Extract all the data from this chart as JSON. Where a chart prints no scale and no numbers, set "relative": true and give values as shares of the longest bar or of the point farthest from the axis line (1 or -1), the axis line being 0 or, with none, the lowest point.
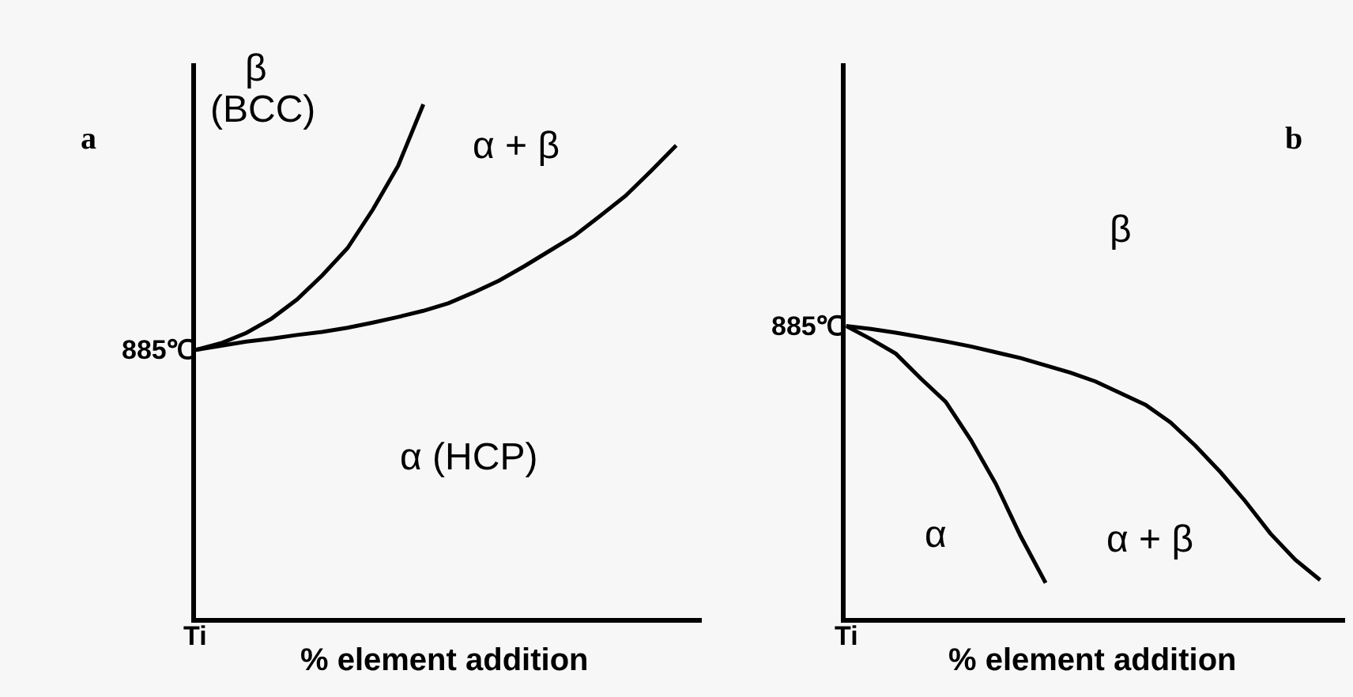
{
  "chart_data": [
    {
      "type": "line",
      "title": "a",
      "relative": true,
      "xlabel": "% element addition",
      "categories": [
        null,
        null,
        null,
        null,
        null,
        null,
        null,
        null,
        null,
        null,
        null,
        null,
        null,
        null,
        null,
        null,
        null,
        null,
        null,
        null,
        null
      ],
      "series": [
        {
          "color": "#000000",
          "values": [
            0.522,
            0.535,
            0.555,
            0.583,
            0.62,
            0.667,
            0.72,
            0.795,
            0.88,
            1.0,
            null,
            null,
            null,
            null,
            null,
            null,
            null,
            null,
            null,
            null,
            null
          ]
        },
        {
          "color": "#000000",
          "values": [
            0.522,
            0.53,
            0.538,
            0.544,
            0.551,
            0.557,
            0.565,
            0.575,
            0.586,
            0.598,
            0.613,
            0.634,
            0.657,
            0.685,
            0.715,
            0.745,
            0.783,
            0.822,
            0.87,
            0.92,
            null
          ]
        }
      ],
      "annotations": [
        "885℃",
        "Ti",
        "β",
        "(BCC)",
        "α + β",
        "α (HCP)"
      ]
    },
    {
      "type": "line",
      "title": "b",
      "relative": true,
      "xlabel": "% element addition",
      "categories": [
        null,
        null,
        null,
        null,
        null,
        null,
        null,
        null,
        null,
        null,
        null,
        null,
        null,
        null,
        null,
        null,
        null,
        null,
        null,
        null,
        null
      ],
      "series": [
        {
          "color": "#000000",
          "values": [
            1,
            0.955,
            0.905,
            0.82,
            0.74,
            0.61,
            0.46,
            0.28,
            0.12,
            null,
            null,
            null,
            null,
            null,
            null,
            null,
            null,
            null,
            null,
            null,
            null
          ]
        },
        {
          "color": "#000000",
          "values": [
            1,
            0.99,
            0.977,
            0.962,
            0.947,
            0.93,
            0.91,
            0.89,
            0.865,
            0.84,
            0.81,
            0.77,
            0.73,
            0.67,
            0.59,
            0.5,
            0.4,
            0.29,
            0.2,
            0.13,
            null
          ]
        }
      ],
      "annotations": [
        "885℃",
        "Ti",
        "β",
        "α",
        "α + β"
      ]
    }
  ]
}
